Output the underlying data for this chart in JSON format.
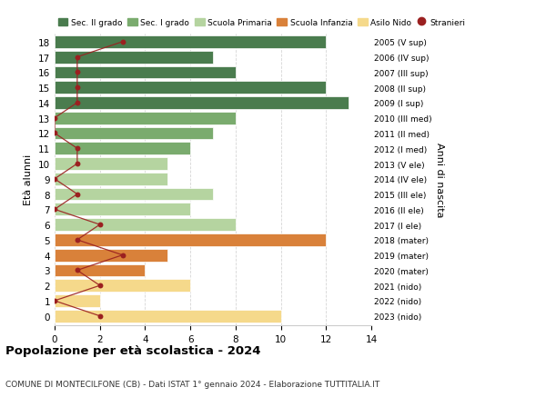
{
  "ages": [
    18,
    17,
    16,
    15,
    14,
    13,
    12,
    11,
    10,
    9,
    8,
    7,
    6,
    5,
    4,
    3,
    2,
    1,
    0
  ],
  "right_labels": [
    "2005 (V sup)",
    "2006 (IV sup)",
    "2007 (III sup)",
    "2008 (II sup)",
    "2009 (I sup)",
    "2010 (III med)",
    "2011 (II med)",
    "2012 (I med)",
    "2013 (V ele)",
    "2014 (IV ele)",
    "2015 (III ele)",
    "2016 (II ele)",
    "2017 (I ele)",
    "2018 (mater)",
    "2019 (mater)",
    "2020 (mater)",
    "2021 (nido)",
    "2022 (nido)",
    "2023 (nido)"
  ],
  "bar_values": [
    12,
    7,
    8,
    12,
    13,
    8,
    7,
    6,
    5,
    5,
    7,
    6,
    8,
    12,
    5,
    4,
    6,
    2,
    10
  ],
  "stranieri_values": [
    3,
    1,
    1,
    1,
    1,
    0,
    0,
    1,
    1,
    0,
    1,
    0,
    2,
    1,
    3,
    1,
    2,
    0,
    2
  ],
  "bar_colors": [
    "#4a7c4e",
    "#4a7c4e",
    "#4a7c4e",
    "#4a7c4e",
    "#4a7c4e",
    "#7aab6e",
    "#7aab6e",
    "#7aab6e",
    "#b5d4a0",
    "#b5d4a0",
    "#b5d4a0",
    "#b5d4a0",
    "#b5d4a0",
    "#d9813a",
    "#d9813a",
    "#d9813a",
    "#f5d98b",
    "#f5d98b",
    "#f5d98b"
  ],
  "legend_items": [
    {
      "label": "Sec. II grado",
      "color": "#4a7c4e"
    },
    {
      "label": "Sec. I grado",
      "color": "#7aab6e"
    },
    {
      "label": "Scuola Primaria",
      "color": "#b5d4a0"
    },
    {
      "label": "Scuola Infanzia",
      "color": "#d9813a"
    },
    {
      "label": "Asilo Nido",
      "color": "#f5d98b"
    },
    {
      "label": "Stranieri",
      "color": "#9b2020"
    }
  ],
  "stranieri_color": "#9b2020",
  "stranieri_line_color": "#9b2020",
  "ylabel": "Età alunni",
  "right_ylabel": "Anni di nascita",
  "title": "Popolazione per età scolastica - 2024",
  "subtitle": "COMUNE DI MONTECILFONE (CB) - Dati ISTAT 1° gennaio 2024 - Elaborazione TUTTITALIA.IT",
  "xlim": [
    0,
    14
  ],
  "background_color": "#ffffff",
  "grid_color": "#cccccc"
}
